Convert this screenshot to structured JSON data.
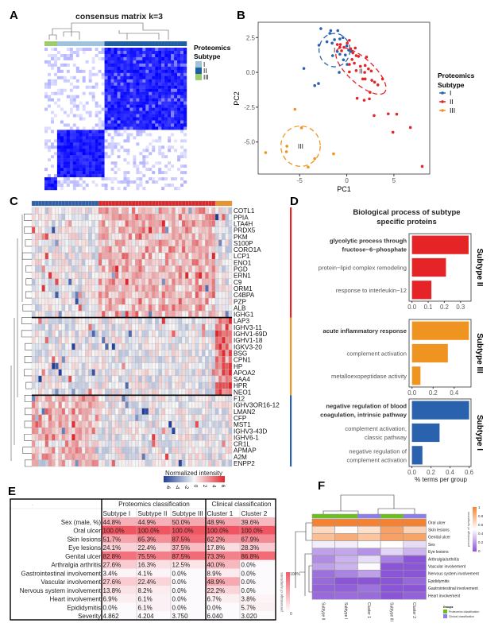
{
  "panel_labels": {
    "a": "A",
    "b": "B",
    "c": "C",
    "d": "D",
    "e": "E",
    "f": "F"
  },
  "colors": {
    "subtype_I": "#2b62ad",
    "subtype_II": "#e42426",
    "subtype_III": "#ef9420",
    "consensus": "#0000ff",
    "heat_low": "#1d3f99",
    "heat_high": "#e3262b",
    "f_high": "#f58232",
    "f_low": "#8a55d6",
    "proteomics_group": "#66c21a",
    "clinical_group": "#8b7cf0"
  },
  "chart_data": [
    {
      "type": "heatmap",
      "title": "consensus matrix k=3",
      "legend": {
        "title_line1": "Proteomics",
        "title_line2": "Subtype",
        "entries": [
          {
            "label": "I",
            "color": "#9ec3da"
          },
          {
            "label": "II",
            "color": "#1f5fa0"
          },
          {
            "label": "III",
            "color": "#9ccc6b"
          }
        ]
      }
    },
    {
      "type": "scatter",
      "xlabel": "PC1",
      "ylabel": "PC2",
      "xlim": [
        -9.4,
        8.8
      ],
      "ylim": [
        -7.3,
        3.6
      ],
      "xticks": [
        "-5",
        "0",
        "5"
      ],
      "yticks": [
        "2.5",
        "0.0",
        "-2.5",
        "-5.0"
      ],
      "legend": {
        "title_line1": "Proteomics",
        "title_line2": "Subtype",
        "position": "right"
      },
      "series": [
        {
          "name": "I",
          "color": "#2b62ad",
          "ellipse_label": "I",
          "points": [
            [
              -2.75,
              3.14
            ],
            [
              -1.7,
              3.0
            ],
            [
              -0.95,
              3.0
            ],
            [
              -1.8,
              2.8
            ],
            [
              -1.3,
              2.35
            ],
            [
              -2.1,
              2.2
            ],
            [
              -1.55,
              2.1
            ],
            [
              -2.95,
              1.95
            ],
            [
              -0.73,
              2.4
            ],
            [
              -0.4,
              2.5
            ],
            [
              0,
              1.9
            ],
            [
              -1,
              1.5
            ],
            [
              -1.5,
              1.2
            ],
            [
              -0.73,
              1.3
            ],
            [
              -0.15,
              1.25
            ],
            [
              -0.35,
              0.9
            ],
            [
              0.2,
              1.6
            ],
            [
              0.5,
              1.5
            ],
            [
              0.05,
              0.57
            ],
            [
              -4.55,
              0.28
            ],
            [
              -0.8,
              0
            ],
            [
              -3,
              -0.8
            ],
            [
              -3.4,
              -0.95
            ]
          ]
        },
        {
          "name": "II",
          "color": "#e42426",
          "ellipse_label": "II",
          "points": [
            [
              -1,
              2.0
            ],
            [
              -0.67,
              2.0
            ],
            [
              0.28,
              2.3
            ],
            [
              0.05,
              2.1
            ],
            [
              -0.3,
              1.8
            ],
            [
              -0.73,
              1.8
            ],
            [
              0.4,
              1.7
            ],
            [
              0.9,
              1.75
            ],
            [
              0.65,
              1.4
            ],
            [
              1.0,
              1.2
            ],
            [
              1.25,
              1.15
            ],
            [
              2.1,
              1.1
            ],
            [
              -0.55,
              1.55
            ],
            [
              0.56,
              0.93
            ],
            [
              0.28,
              0.57
            ],
            [
              0.8,
              0.66
            ],
            [
              1.45,
              0.44
            ],
            [
              1.95,
              0.5
            ],
            [
              2.3,
              0.25
            ],
            [
              1.0,
              0.13
            ],
            [
              0.28,
              0.03
            ],
            [
              1.9,
              0
            ],
            [
              2.6,
              0.1
            ],
            [
              1.7,
              -0.47
            ],
            [
              1.95,
              -0.47
            ],
            [
              2.66,
              -0.57
            ],
            [
              2.95,
              -0.7
            ],
            [
              3.3,
              -0.9
            ],
            [
              3.8,
              -0.47
            ],
            [
              1.1,
              -1.86
            ],
            [
              1.85,
              -2.0
            ],
            [
              2.4,
              -1.9
            ],
            [
              2.47,
              -1.43
            ],
            [
              2.9,
              -3.1
            ],
            [
              4.4,
              -2.98
            ],
            [
              5.3,
              -3.0
            ],
            [
              4.9,
              -4.3
            ],
            [
              6.75,
              -3.96
            ],
            [
              8.0,
              -6.75
            ]
          ]
        },
        {
          "name": "III",
          "color": "#ef9420",
          "ellipse_label": "III",
          "points": [
            [
              -5.5,
              -2.65
            ],
            [
              -4.8,
              -3.98
            ],
            [
              -6.35,
              -5.3
            ],
            [
              -6.4,
              -5.7
            ],
            [
              -8.6,
              -5.76
            ],
            [
              -3.4,
              -6.2
            ],
            [
              -4.1,
              -6.8
            ],
            [
              -1.4,
              -5.85
            ]
          ]
        }
      ]
    },
    {
      "type": "heatmap",
      "legend_title": "Normalized intensity",
      "color_range": [
        -6,
        6
      ],
      "legend_ticks": [
        "-6",
        "-4",
        "-2",
        "0",
        "2",
        "4",
        "6"
      ],
      "column_groups": [
        {
          "name": "I",
          "color": "#2b62ad"
        },
        {
          "name": "II",
          "color": "#e42426"
        },
        {
          "name": "III",
          "color": "#ef9420"
        }
      ],
      "gene_groups": [
        {
          "subtype": "II",
          "genes": [
            "COTL1",
            "PPIA",
            "LTA4H",
            "PRDX5",
            "PKM",
            "S100P",
            "CORO1A",
            "LCP1",
            "ENO1",
            "PGD",
            "ERN1",
            "C9",
            "ORM1",
            "C4BPA",
            "PZP",
            "ALB",
            "IGHG1"
          ]
        },
        {
          "subtype": "III",
          "genes": [
            "LAP3",
            "IGHV3-11",
            "IGHV1-69D",
            "IGHV1-18",
            "IGKV3-20",
            "BSG",
            "CPN1",
            "HP",
            "APOA2",
            "SAA4",
            "HPR",
            "NEO1"
          ]
        },
        {
          "subtype": "I",
          "genes": [
            "F12",
            "IGHV3OR16-12",
            "LMAN2",
            "CFP",
            "MST1",
            "IGHV3-43D",
            "IGHV6-1",
            "CR1L",
            "APMAP",
            "A2M",
            "ENPP2"
          ]
        }
      ]
    },
    {
      "type": "bar",
      "orientation": "horizontal",
      "title_line1": "Biological process of subtype",
      "title_line2": "specific proteins",
      "xlabel": "% terms per group",
      "facets": [
        {
          "strip": "Subtype II",
          "color": "#e42426",
          "xlim": [
            -0.018,
            0.365
          ],
          "ticks": [
            0,
            0.1,
            0.2,
            0.3
          ],
          "tick_labels": [
            "0.0",
            "0.1",
            "0.2",
            "0.3"
          ],
          "terms": [
            {
              "lines": [
                "glycolytic process through",
                "fructose−6−phosphate"
              ],
              "value": 0.35,
              "bold": true
            },
            {
              "lines": [
                "protein−lipid complex remodeling"
              ],
              "value": 0.21
            },
            {
              "lines": [
                "response to interleukin−12"
              ],
              "value": 0.12
            }
          ]
        },
        {
          "strip": "Subtype III",
          "color": "#ef9420",
          "xlim": [
            -0.028,
            0.56
          ],
          "ticks": [
            0,
            0.2,
            0.4
          ],
          "tick_labels": [
            "0.0",
            "0.2",
            "0.4"
          ],
          "terms": [
            {
              "lines": [
                "acute inflammatory response"
              ],
              "value": 0.54,
              "bold": true
            },
            {
              "lines": [
                "complement activation"
              ],
              "value": 0.34
            },
            {
              "lines": [
                "metalloexopeptidase activity"
              ],
              "value": 0.08
            }
          ]
        },
        {
          "strip": "Subtype I",
          "color": "#2b62ad",
          "xlim": [
            -0.03,
            0.62
          ],
          "ticks": [
            0,
            0.2,
            0.4,
            0.6
          ],
          "tick_labels": [
            "0.0",
            "0.2",
            "0.4",
            "0.6"
          ],
          "terms": [
            {
              "lines": [
                "negative regulation of blood",
                "coagulation, intrinsic pathway"
              ],
              "value": 0.6,
              "bold": true
            },
            {
              "lines": [
                "complement activation,",
                "classic pathway"
              ],
              "value": 0.29
            },
            {
              "lines": [
                "negative regulation of",
                "complement activation"
              ],
              "value": 0.11
            }
          ]
        }
      ]
    },
    {
      "type": "table",
      "corner": "-",
      "group_headers": [
        "Proteomics classification",
        "Clinical classification"
      ],
      "columns": [
        "Subtype I",
        "Subtype II",
        "Subtype III",
        "Cluster 1",
        "Cluster 2"
      ],
      "legend": {
        "title": "percentage of symptoms",
        "max_label": "100%",
        "min_label": "0"
      },
      "rows": [
        {
          "label": "Sex (male, %)",
          "values": [
            "44.8%",
            "44.9%",
            "50.0%",
            "48.9%",
            "39.6%"
          ]
        },
        {
          "label": "Oral ulcer",
          "values": [
            "100.0%",
            "100.0%",
            "100.0%",
            "100.0%",
            "100.0%"
          ]
        },
        {
          "label": "Skin lesions",
          "values": [
            "51.7%",
            "65.3%",
            "87.5%",
            "62.2%",
            "67.9%"
          ]
        },
        {
          "label": "Eye lesions",
          "values": [
            "24.1%",
            "22.4%",
            "37.5%",
            "17.8%",
            "28.3%"
          ]
        },
        {
          "label": "Genital ulcer",
          "values": [
            "82.8%",
            "75.5%",
            "87.5%",
            "73.3%",
            "86.8%"
          ]
        },
        {
          "label": "Arthralgia arthritis",
          "values": [
            "27.6%",
            "16.3%",
            "12.5%",
            "40.0%",
            "0.0%"
          ]
        },
        {
          "label": "Gastrointestinal involvement",
          "values": [
            "3.4%",
            "4.1%",
            "0.0%",
            "8.9%",
            "0.0%"
          ]
        },
        {
          "label": "Vascular involvement",
          "values": [
            "27.6%",
            "22.4%",
            "0.0%",
            "48.9%",
            "0.0%"
          ]
        },
        {
          "label": "Nervous system involvement",
          "values": [
            "13.8%",
            "8.2%",
            "0.0%",
            "22.2%",
            "0.0%"
          ]
        },
        {
          "label": "Heart involvement",
          "values": [
            "6.9%",
            "6.1%",
            "0.0%",
            "6.7%",
            "3.8%"
          ]
        },
        {
          "label": "Epididymitis",
          "values": [
            "0.0%",
            "6.1%",
            "0.0%",
            "0.0%",
            "5.7%"
          ]
        },
        {
          "label": "Severity",
          "values": [
            "4.862",
            "4.204",
            "3.750",
            "6.040",
            "3.020"
          ]
        }
      ]
    },
    {
      "type": "heatmap",
      "columns": [
        {
          "label": "Subtype II",
          "group": "proteomics"
        },
        {
          "label": "Subtype I",
          "group": "proteomics"
        },
        {
          "label": "Cluster 1",
          "group": "clinical"
        },
        {
          "label": "Subtype III",
          "group": "proteomics"
        },
        {
          "label": "Cluster 2",
          "group": "clinical"
        }
      ],
      "rows": [
        {
          "label": "Oral ulcer",
          "values": [
            1.0,
            1.0,
            1.0,
            1.0,
            1.0
          ]
        },
        {
          "label": "Skin lesions",
          "values": [
            0.653,
            0.517,
            0.622,
            0.875,
            0.679
          ]
        },
        {
          "label": "Genital ulcer",
          "values": [
            0.755,
            0.828,
            0.733,
            0.875,
            0.868
          ]
        },
        {
          "label": "Sex",
          "values": [
            0.449,
            0.448,
            0.489,
            0.5,
            0.396
          ]
        },
        {
          "label": "Eye lesions",
          "values": [
            0.224,
            0.241,
            0.178,
            0.375,
            0.283
          ]
        },
        {
          "label": "Arthralgia/arthritis",
          "values": [
            0.163,
            0.276,
            0.4,
            0.125,
            0.0
          ]
        },
        {
          "label": "Vascular involvement",
          "values": [
            0.224,
            0.276,
            0.489,
            0.0,
            0.0
          ]
        },
        {
          "label": "Nervous system involvement",
          "values": [
            0.082,
            0.138,
            0.222,
            0.0,
            0.0
          ]
        },
        {
          "label": "Epididymitis",
          "values": [
            0.061,
            0.0,
            0.0,
            0.0,
            0.057
          ]
        },
        {
          "label": "Gastrointestinal involvement",
          "values": [
            0.041,
            0.034,
            0.089,
            0.0,
            0.0
          ]
        },
        {
          "label": "Heart involvement",
          "values": [
            0.061,
            0.069,
            0.067,
            0.0,
            0.038
          ]
        }
      ],
      "legend": {
        "title": "percentage of symptoms",
        "ticks": [
          "1",
          "0.8",
          "0.6",
          "0.4",
          "0.2",
          "0"
        ]
      },
      "groups_legend": {
        "title": "Groups",
        "entries": [
          {
            "label": "Proteomics classification",
            "color": "#66c21a"
          },
          {
            "label": "Clinical classification",
            "color": "#8b7cf0"
          }
        ]
      }
    }
  ]
}
